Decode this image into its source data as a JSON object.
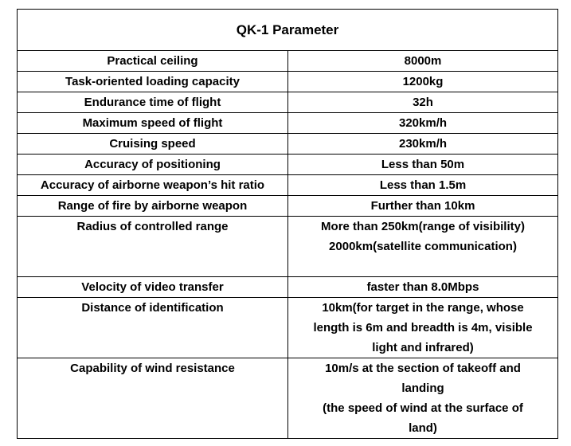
{
  "title": "QK-1 Parameter",
  "rows": [
    {
      "label": "Practical ceiling",
      "value": [
        "8000m"
      ]
    },
    {
      "label": "Task-oriented loading capacity",
      "value": [
        "1200kg"
      ]
    },
    {
      "label": "Endurance time of flight",
      "value": [
        "32h"
      ]
    },
    {
      "label": "Maximum speed of flight",
      "value": [
        "320km/h"
      ]
    },
    {
      "label": "Cruising speed",
      "value": [
        "230km/h"
      ]
    },
    {
      "label": "Accuracy of positioning",
      "value": [
        "Less than 50m"
      ]
    },
    {
      "label": "Accuracy of airborne weapon’s hit ratio",
      "value": [
        "Less than 1.5m"
      ]
    },
    {
      "label": "Range of fire by airborne weapon",
      "value": [
        "Further than 10km"
      ]
    },
    {
      "label": "Radius of controlled range",
      "value": [
        "More than 250km(range of visibility)",
        "2000km(satellite communication)"
      ]
    },
    {
      "label": "Velocity of video transfer",
      "value": [
        "faster than 8.0Mbps"
      ]
    },
    {
      "label": "Distance of identification",
      "value": [
        "10km(for target in the range, whose",
        "length is 6m and breadth is 4m, visible",
        "light and infrared)"
      ]
    },
    {
      "label": "Capability of wind resistance",
      "value": [
        "10m/s at the section of takeoff and",
        "landing",
        "(the speed of wind at the surface of",
        "land)"
      ]
    }
  ]
}
